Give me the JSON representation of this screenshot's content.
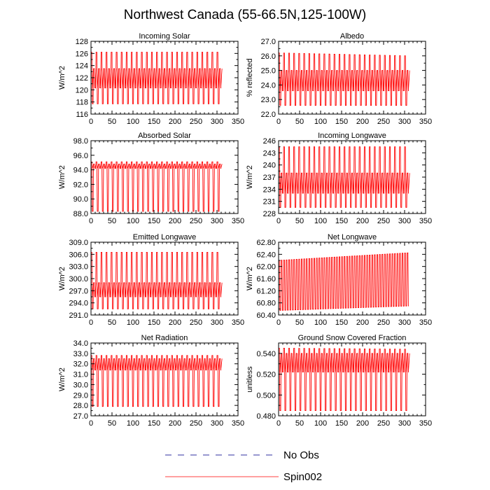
{
  "title": "Northwest Canada (55-66.5N,125-100W)",
  "legend": [
    {
      "label": "No Obs",
      "color": "#3030a0",
      "dash": true
    },
    {
      "label": "Spin002",
      "color": "#ff0000",
      "dash": false
    }
  ],
  "chart_data": [
    {
      "type": "line",
      "title": "Incoming Solar",
      "ylabel": "W/m^2",
      "xlim": [
        0,
        350
      ],
      "xticks": [
        "0",
        "50",
        "100",
        "150",
        "200",
        "250",
        "300",
        "350"
      ],
      "ylim": [
        116,
        128
      ],
      "yticks": [
        "116",
        "118",
        "120",
        "122",
        "124",
        "126",
        "128"
      ],
      "x_range": [
        0,
        310
      ],
      "cycle_length": 6,
      "envelope": {
        "max": [
          126.2,
          126.2
        ],
        "min": [
          117.7,
          117.7
        ]
      },
      "dense_band": [
        120.3,
        123.5
      ],
      "series": [
        {
          "name": "Spin002",
          "color": "#ff0000"
        }
      ]
    },
    {
      "type": "line",
      "title": "Albedo",
      "ylabel": "% reflected",
      "xlim": [
        0,
        350
      ],
      "xticks": [
        "0",
        "50",
        "100",
        "150",
        "200",
        "250",
        "300",
        "350"
      ],
      "ylim": [
        22,
        27
      ],
      "yticks": [
        "22.0",
        "23.0",
        "24.0",
        "25.0",
        "26.0",
        "27.0"
      ],
      "x_range": [
        0,
        310
      ],
      "cycle_length": 6,
      "envelope": {
        "max": [
          26.2,
          26.0
        ],
        "min": [
          22.6,
          22.6
        ]
      },
      "dense_band": [
        23.6,
        25.0
      ],
      "series": [
        {
          "name": "Spin002",
          "color": "#ff0000"
        }
      ]
    },
    {
      "type": "line",
      "title": "Absorbed Solar",
      "ylabel": "W/m^2",
      "xlim": [
        0,
        350
      ],
      "xticks": [
        "0",
        "50",
        "100",
        "150",
        "200",
        "250",
        "300",
        "350"
      ],
      "ylim": [
        88,
        98
      ],
      "yticks": [
        "88.0",
        "90.0",
        "92.0",
        "94.0",
        "96.0",
        "98.0"
      ],
      "x_range": [
        0,
        310
      ],
      "cycle_length": 6,
      "envelope": {
        "max": [
          95.1,
          95.1
        ],
        "min": [
          88.3,
          88.3
        ]
      },
      "dense_band": [
        94.2,
        94.8
      ],
      "series": [
        {
          "name": "Spin002",
          "color": "#ff0000"
        }
      ]
    },
    {
      "type": "line",
      "title": "Incoming Longwave",
      "ylabel": "W/m^2",
      "xlim": [
        0,
        350
      ],
      "xticks": [
        "0",
        "50",
        "100",
        "150",
        "200",
        "250",
        "300",
        "350"
      ],
      "ylim": [
        228,
        246
      ],
      "yticks": [
        "228",
        "231",
        "234",
        "237",
        "240",
        "243",
        "246"
      ],
      "x_range": [
        0,
        310
      ],
      "cycle_length": 6,
      "envelope": {
        "max": [
          244.5,
          244.5
        ],
        "min": [
          229.5,
          229.5
        ]
      },
      "dense_band": [
        233.0,
        238.0
      ],
      "series": [
        {
          "name": "Spin002",
          "color": "#ff0000"
        }
      ]
    },
    {
      "type": "line",
      "title": "Emitted Longwave",
      "ylabel": "W/m^2",
      "xlim": [
        0,
        350
      ],
      "xticks": [
        "0",
        "50",
        "100",
        "150",
        "200",
        "250",
        "300",
        "350"
      ],
      "ylim": [
        291,
        309
      ],
      "yticks": [
        "291.0",
        "294.0",
        "297.0",
        "300.0",
        "303.0",
        "306.0",
        "309.0"
      ],
      "x_range": [
        0,
        310
      ],
      "cycle_length": 6,
      "envelope": {
        "max": [
          306.5,
          306.5
        ],
        "min": [
          292.5,
          292.5
        ]
      },
      "dense_band": [
        295.5,
        299.0
      ],
      "series": [
        {
          "name": "Spin002",
          "color": "#ff0000"
        }
      ]
    },
    {
      "type": "line",
      "title": "Net Longwave",
      "ylabel": "W/m^2",
      "xlim": [
        0,
        350
      ],
      "xticks": [
        "0",
        "50",
        "100",
        "150",
        "200",
        "250",
        "300",
        "350"
      ],
      "ylim": [
        60.4,
        62.8
      ],
      "yticks": [
        "60.40",
        "60.80",
        "61.20",
        "61.60",
        "62.00",
        "62.40",
        "62.80"
      ],
      "x_range": [
        0,
        310
      ],
      "cycle_length": 6,
      "envelope": {
        "max": [
          62.2,
          62.45
        ],
        "min": [
          60.55,
          60.7
        ]
      },
      "dense_band": null,
      "series": [
        {
          "name": "Spin002",
          "color": "#ff0000"
        }
      ]
    },
    {
      "type": "line",
      "title": "Net Radiation",
      "ylabel": "W/m^2",
      "xlim": [
        0,
        350
      ],
      "xticks": [
        "0",
        "50",
        "100",
        "150",
        "200",
        "250",
        "300",
        "350"
      ],
      "ylim": [
        27,
        34
      ],
      "yticks": [
        "27.0",
        "28.0",
        "29.0",
        "30.0",
        "31.0",
        "32.0",
        "33.0",
        "34.0"
      ],
      "x_range": [
        0,
        310
      ],
      "cycle_length": 6,
      "envelope": {
        "max": [
          32.8,
          32.8
        ],
        "min": [
          27.9,
          27.9
        ]
      },
      "dense_band": [
        31.4,
        32.5
      ],
      "series": [
        {
          "name": "Spin002",
          "color": "#ff0000"
        }
      ]
    },
    {
      "type": "line",
      "title": "Ground Snow Covered Fraction",
      "ylabel": "unitless",
      "xlim": [
        0,
        350
      ],
      "xticks": [
        "0",
        "50",
        "100",
        "150",
        "200",
        "250",
        "300",
        "350"
      ],
      "ylim": [
        0.48,
        0.55
      ],
      "yticks": [
        "0.480",
        "0.500",
        "0.520",
        "0.540"
      ],
      "x_range": [
        0,
        310
      ],
      "cycle_length": 6,
      "envelope": {
        "max": [
          0.545,
          0.544
        ],
        "min": [
          0.485,
          0.485
        ]
      },
      "dense_band": [
        0.522,
        0.54
      ],
      "series": [
        {
          "name": "Spin002",
          "color": "#ff0000"
        }
      ]
    }
  ]
}
